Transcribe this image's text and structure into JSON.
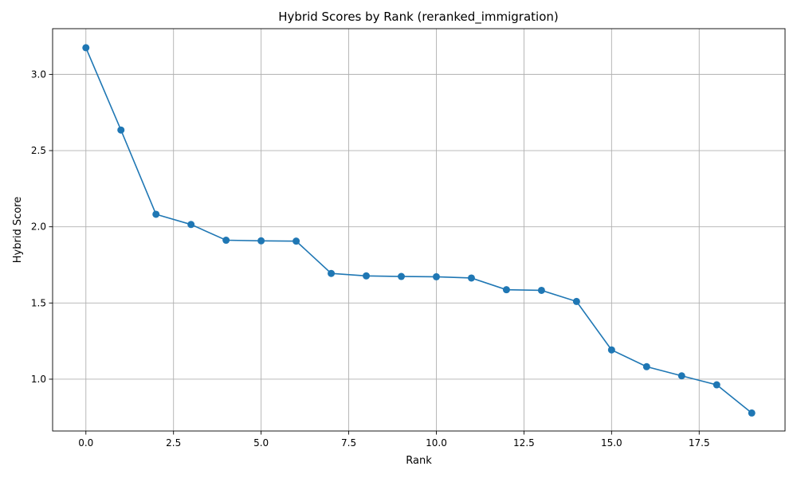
{
  "chart_data": {
    "type": "line",
    "title": "Hybrid Scores by Rank (reranked_immigration)",
    "xlabel": "Rank",
    "ylabel": "Hybrid Score",
    "xlim": [
      -0.95,
      19.95
    ],
    "ylim": [
      0.66,
      3.3
    ],
    "x_ticks": [
      0.0,
      2.5,
      5.0,
      7.5,
      10.0,
      12.5,
      15.0,
      17.5
    ],
    "x_tick_labels": [
      "0.0",
      "2.5",
      "5.0",
      "7.5",
      "10.0",
      "12.5",
      "15.0",
      "17.5"
    ],
    "y_ticks": [
      1.0,
      1.5,
      2.0,
      2.5,
      3.0
    ],
    "y_tick_labels": [
      "1.0",
      "1.5",
      "2.0",
      "2.5",
      "3.0"
    ],
    "grid": true,
    "series": [
      {
        "color": "#1f77b4",
        "marker": "circle",
        "x": [
          0,
          1,
          2,
          3,
          4,
          5,
          6,
          7,
          8,
          9,
          10,
          11,
          12,
          13,
          14,
          15,
          16,
          17,
          18,
          19
        ],
        "values": [
          3.175,
          2.635,
          2.082,
          2.015,
          1.912,
          1.908,
          1.906,
          1.694,
          1.678,
          1.674,
          1.672,
          1.664,
          1.587,
          1.583,
          1.51,
          1.192,
          1.082,
          1.022,
          0.963,
          0.778
        ]
      }
    ]
  }
}
